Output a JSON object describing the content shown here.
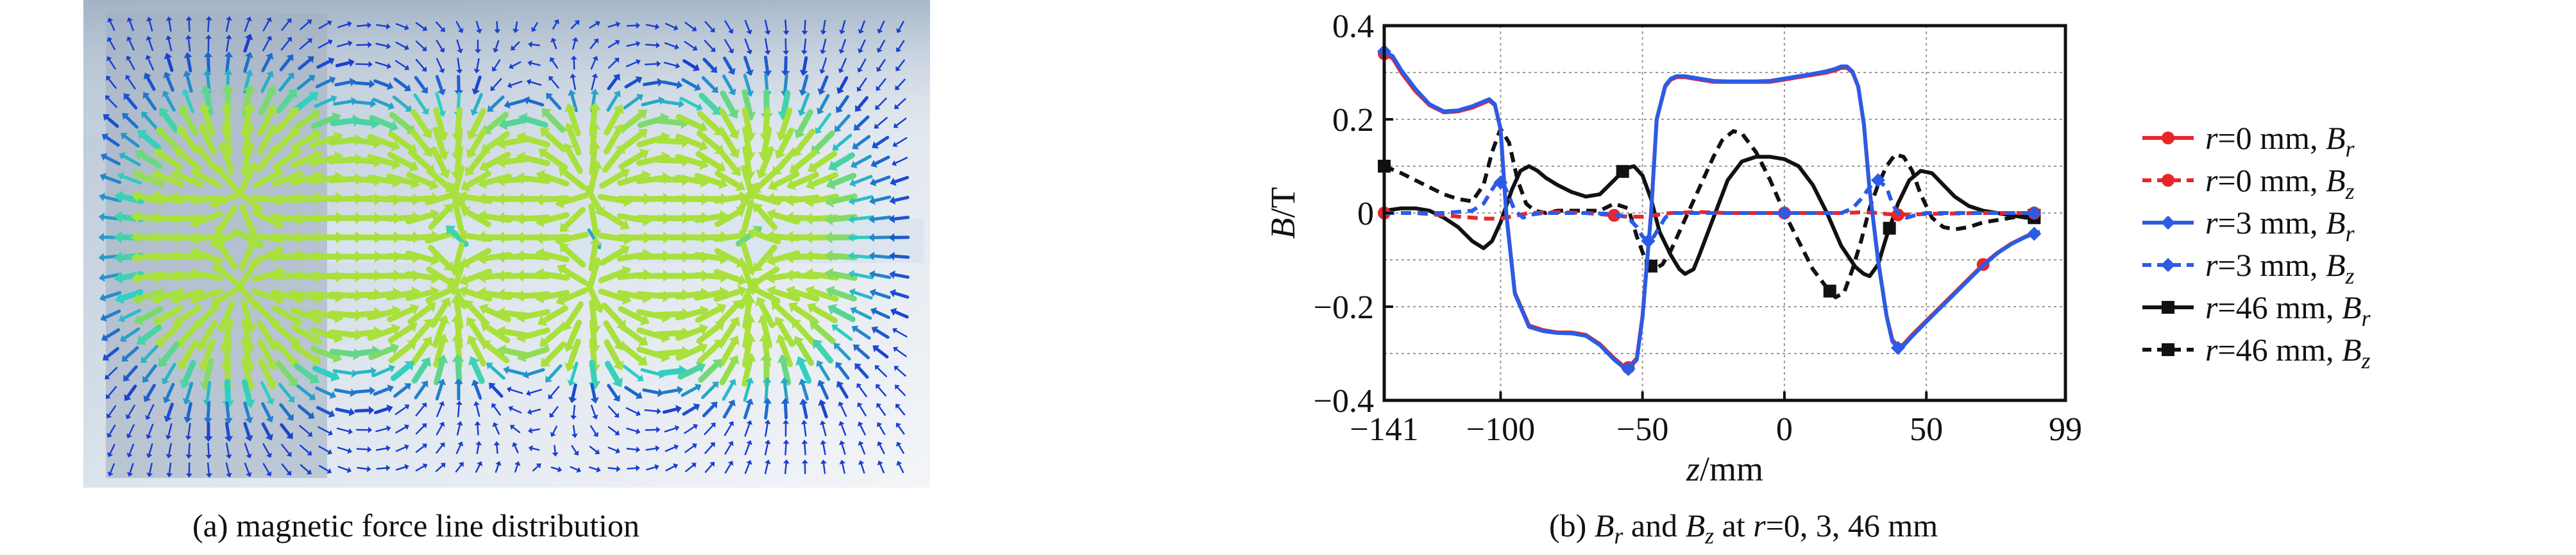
{
  "panel_a": {
    "caption": "(a) magnetic force line distribution"
  },
  "panel_b": {
    "caption_parts": [
      "(b) ",
      "B",
      "r",
      " and ",
      "B",
      "z",
      " at ",
      "r",
      "=0, 3, 46 mm"
    ]
  },
  "chart_data": [
    {
      "type": "vector-field",
      "title": "(a) magnetic force line distribution",
      "colors": {
        "weak": "#1a3fd0",
        "strong_low": "#2ecfc4",
        "strong_high": "#a8e03c",
        "peak": "#e6d84a"
      }
    },
    {
      "type": "line",
      "title": "(b) Br and Bz at r=0, 3, 46 mm",
      "xlabel": {
        "var": "z",
        "unit": "/mm"
      },
      "ylabel": {
        "var": "B",
        "unit": "/T"
      },
      "xlim": [
        -141,
        99
      ],
      "ylim": [
        -0.4,
        0.4
      ],
      "xticks": [
        -141,
        -100,
        -50,
        0,
        50,
        99
      ],
      "xticklabels": [
        "−141",
        "−100",
        "−50",
        "0",
        "50",
        "99"
      ],
      "yticks": [
        -0.4,
        -0.2,
        0,
        0.2,
        0.4
      ],
      "yticklabels": [
        "−0.4",
        "−0.2",
        "0",
        "0.2",
        "0.4"
      ],
      "grid": true,
      "legend_position": "right",
      "series": [
        {
          "legend": [
            "r",
            "=0 mm, ",
            "B",
            "r"
          ],
          "color": "#e8262a",
          "dash": false,
          "marker": "circle",
          "x": [
            -141,
            -138,
            -135,
            -130,
            -125,
            -120,
            -115,
            -110,
            -106,
            -104,
            -102,
            -100,
            -98,
            -95,
            -90,
            -85,
            -80,
            -75,
            -70,
            -65,
            -60,
            -57,
            -55,
            -52,
            -50,
            -47,
            -45,
            -42,
            -40,
            -38,
            -35,
            -30,
            -25,
            -20,
            -15,
            -10,
            -5,
            0,
            5,
            10,
            15,
            18,
            20,
            22,
            24,
            26,
            28,
            30,
            33,
            36,
            38,
            40,
            42,
            45,
            50,
            55,
            60,
            65,
            70,
            75,
            80,
            85,
            90
          ],
          "y": [
            0.34,
            0.33,
            0.3,
            0.26,
            0.23,
            0.215,
            0.217,
            0.225,
            0.235,
            0.24,
            0.23,
            0.18,
            0.0,
            -0.17,
            -0.24,
            -0.25,
            -0.255,
            -0.255,
            -0.26,
            -0.28,
            -0.31,
            -0.325,
            -0.33,
            -0.31,
            -0.22,
            0.0,
            0.2,
            0.27,
            0.285,
            0.29,
            0.29,
            0.285,
            0.28,
            0.28,
            0.28,
            0.28,
            0.28,
            0.285,
            0.29,
            0.295,
            0.3,
            0.305,
            0.31,
            0.31,
            0.3,
            0.27,
            0.19,
            0.05,
            -0.1,
            -0.22,
            -0.27,
            -0.285,
            -0.28,
            -0.26,
            -0.23,
            -0.2,
            -0.17,
            -0.14,
            -0.11,
            -0.085,
            -0.065,
            -0.05,
            -0.04
          ],
          "markers_x": [
            -141,
            -55,
            70
          ]
        },
        {
          "legend": [
            "r",
            "=0 mm, ",
            "B",
            "z"
          ],
          "color": "#e8262a",
          "dash": true,
          "marker": "circle",
          "x": [
            -141,
            -130,
            -120,
            -110,
            -105,
            -100,
            -95,
            -90,
            -80,
            -70,
            -60,
            -55,
            -50,
            -45,
            -40,
            -30,
            -20,
            -10,
            0,
            10,
            20,
            25,
            28,
            30,
            33,
            36,
            40,
            45,
            50,
            60,
            70,
            80,
            90
          ],
          "y": [
            0.0,
            0.0,
            -0.005,
            -0.01,
            -0.012,
            -0.012,
            -0.006,
            0.0,
            0.002,
            0.0,
            -0.005,
            -0.008,
            -0.008,
            -0.004,
            0.0,
            0.002,
            0.0,
            0.0,
            0.0,
            0.0,
            0.0,
            0.001,
            0.002,
            0.001,
            0.0,
            -0.002,
            -0.004,
            -0.003,
            -0.002,
            -0.001,
            0.0,
            0.0,
            0.0
          ],
          "markers_x": [
            -141,
            -60,
            0,
            40,
            88
          ]
        },
        {
          "legend": [
            "r",
            "=3 mm, ",
            "B",
            "r"
          ],
          "color": "#2b5ce6",
          "dash": false,
          "marker": "diamond",
          "x": [
            -141,
            -138,
            -135,
            -130,
            -125,
            -120,
            -115,
            -110,
            -106,
            -104,
            -102,
            -100,
            -98,
            -95,
            -90,
            -85,
            -80,
            -75,
            -70,
            -65,
            -60,
            -57,
            -55,
            -52,
            -50,
            -47,
            -45,
            -42,
            -40,
            -38,
            -35,
            -30,
            -25,
            -20,
            -15,
            -10,
            -5,
            0,
            5,
            10,
            15,
            18,
            20,
            22,
            24,
            26,
            28,
            30,
            33,
            36,
            38,
            40,
            42,
            45,
            50,
            55,
            60,
            65,
            70,
            75,
            80,
            85,
            90
          ],
          "y": [
            0.345,
            0.335,
            0.305,
            0.265,
            0.232,
            0.217,
            0.219,
            0.228,
            0.238,
            0.243,
            0.232,
            0.178,
            -0.002,
            -0.172,
            -0.243,
            -0.252,
            -0.256,
            -0.257,
            -0.262,
            -0.282,
            -0.313,
            -0.328,
            -0.333,
            -0.313,
            -0.222,
            -0.002,
            0.2,
            0.272,
            0.287,
            0.292,
            0.292,
            0.287,
            0.282,
            0.281,
            0.281,
            0.281,
            0.282,
            0.287,
            0.292,
            0.297,
            0.303,
            0.308,
            0.313,
            0.313,
            0.302,
            0.27,
            0.19,
            0.05,
            -0.1,
            -0.22,
            -0.274,
            -0.288,
            -0.283,
            -0.263,
            -0.232,
            -0.202,
            -0.172,
            -0.142,
            -0.112,
            -0.086,
            -0.066,
            -0.051,
            -0.04
          ],
          "markers_x": [
            -141,
            -55,
            40,
            88
          ]
        },
        {
          "legend": [
            "r",
            "=3 mm, ",
            "B",
            "z"
          ],
          "color": "#2b5ce6",
          "dash": true,
          "marker": "diamond",
          "x": [
            -141,
            -130,
            -120,
            -110,
            -106,
            -103,
            -101,
            -99,
            -97,
            -95,
            -92,
            -90,
            -85,
            -80,
            -70,
            -60,
            -55,
            -52,
            -50,
            -48,
            -46,
            -44,
            -42,
            -40,
            -35,
            -30,
            -20,
            -10,
            0,
            10,
            20,
            24,
            27,
            30,
            33,
            36,
            38,
            40,
            43,
            46,
            50,
            60,
            70,
            80,
            90
          ],
          "y": [
            0.0,
            0.0,
            0.0,
            0.005,
            0.02,
            0.05,
            0.068,
            0.062,
            0.035,
            0.005,
            -0.01,
            -0.004,
            0.0,
            0.0,
            0.0,
            -0.002,
            -0.01,
            -0.03,
            -0.05,
            -0.06,
            -0.05,
            -0.03,
            -0.01,
            0.0,
            0.0,
            0.0,
            0.0,
            0.0,
            0.0,
            0.0,
            0.0,
            0.01,
            0.03,
            0.055,
            0.07,
            0.055,
            0.02,
            0.0,
            -0.01,
            -0.005,
            0.0,
            0.0,
            0.0,
            0.0,
            0.0
          ],
          "markers_x": [
            -100,
            -48,
            0,
            33,
            88
          ]
        },
        {
          "legend": [
            "r",
            "=46 mm, ",
            "B",
            "r"
          ],
          "color": "#111111",
          "dash": false,
          "marker": "square",
          "x": [
            -141,
            -135,
            -130,
            -125,
            -120,
            -115,
            -110,
            -106,
            -103,
            -100,
            -96,
            -93,
            -90,
            -87,
            -84,
            -80,
            -75,
            -70,
            -65,
            -60,
            -56,
            -53,
            -50,
            -47,
            -44,
            -40,
            -37,
            -35,
            -32,
            -30,
            -25,
            -20,
            -15,
            -10,
            -5,
            0,
            5,
            10,
            15,
            20,
            25,
            28,
            30,
            33,
            36,
            40,
            44,
            48,
            52,
            56,
            60,
            65,
            70,
            75,
            80,
            85,
            90
          ],
          "y": [
            0.005,
            0.01,
            0.01,
            0.005,
            -0.01,
            -0.03,
            -0.06,
            -0.075,
            -0.06,
            -0.02,
            0.05,
            0.09,
            0.1,
            0.09,
            0.075,
            0.06,
            0.045,
            0.035,
            0.04,
            0.07,
            0.095,
            0.1,
            0.08,
            0.03,
            -0.04,
            -0.09,
            -0.12,
            -0.13,
            -0.12,
            -0.09,
            -0.01,
            0.07,
            0.11,
            0.12,
            0.12,
            0.115,
            0.1,
            0.06,
            0.0,
            -0.07,
            -0.115,
            -0.13,
            -0.135,
            -0.11,
            -0.05,
            0.02,
            0.07,
            0.09,
            0.085,
            0.06,
            0.035,
            0.015,
            0.005,
            0.0,
            -0.005,
            -0.01,
            -0.01
          ],
          "markers_x": [
            -57,
            37,
            88
          ]
        },
        {
          "legend": [
            "r",
            "=46 mm, ",
            "B",
            "z"
          ],
          "color": "#111111",
          "dash": true,
          "marker": "square",
          "x": [
            -141,
            -135,
            -130,
            -125,
            -120,
            -115,
            -110,
            -106,
            -103,
            -100,
            -97,
            -94,
            -91,
            -88,
            -84,
            -80,
            -75,
            -70,
            -65,
            -60,
            -55,
            -52,
            -49,
            -46,
            -43,
            -40,
            -37,
            -34,
            -31,
            -28,
            -25,
            -22,
            -18,
            -15,
            -10,
            -5,
            0,
            5,
            10,
            15,
            18,
            21,
            24,
            27,
            30,
            33,
            36,
            39,
            42,
            45,
            48,
            52,
            56,
            60,
            65,
            70,
            75,
            80,
            85,
            90
          ],
          "y": [
            0.1,
            0.085,
            0.07,
            0.055,
            0.04,
            0.03,
            0.025,
            0.06,
            0.13,
            0.18,
            0.15,
            0.07,
            0.02,
            0.005,
            0.0,
            0.005,
            0.005,
            0.005,
            0.005,
            0.02,
            0.01,
            -0.05,
            -0.1,
            -0.12,
            -0.11,
            -0.08,
            -0.04,
            0.0,
            0.04,
            0.08,
            0.12,
            0.155,
            0.175,
            0.17,
            0.13,
            0.07,
            0.0,
            -0.06,
            -0.12,
            -0.16,
            -0.18,
            -0.17,
            -0.12,
            -0.06,
            0.01,
            0.06,
            0.1,
            0.125,
            0.12,
            0.09,
            0.04,
            -0.01,
            -0.03,
            -0.035,
            -0.03,
            -0.02,
            -0.015,
            -0.01,
            -0.005,
            -0.005
          ],
          "markers_x": [
            -141,
            -47,
            16,
            88
          ]
        }
      ]
    }
  ]
}
